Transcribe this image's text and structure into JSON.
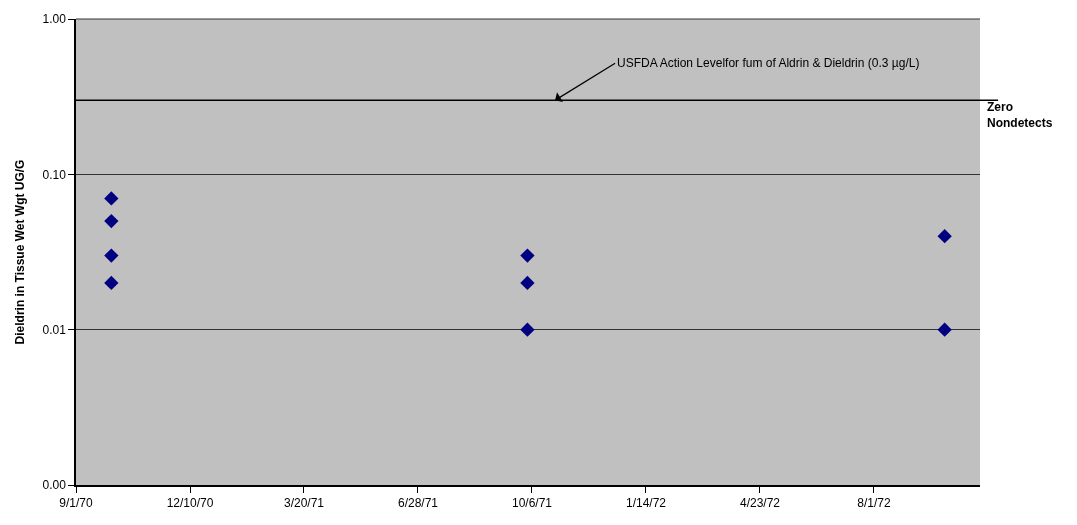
{
  "chart_data": {
    "type": "scatter",
    "ylabel": "Dieldrin in Tissue Wet Wgt UG/G",
    "x": [
      "1970-10-02",
      "1970-10-02",
      "1970-10-02",
      "1970-10-02",
      "1971-10-02",
      "1971-10-02",
      "1971-10-02",
      "1972-10-02",
      "1972-10-02"
    ],
    "series": [
      {
        "color": "#000080",
        "values": [
          0.07,
          0.05,
          0.03,
          0.02,
          0.03,
          0.02,
          0.01,
          0.04,
          0.01
        ]
      }
    ],
    "log": "y",
    "ylim": [
      0.001,
      1
    ],
    "yticks": [
      {
        "value": 0.001,
        "label": "0.00"
      },
      {
        "value": 0.01,
        "label": "0.01"
      },
      {
        "value": 0.1,
        "label": "0.10"
      },
      {
        "value": 1,
        "label": "1.00"
      }
    ],
    "xlim": [
      "1970-09-01",
      "1972-11-02"
    ],
    "xticks": [
      {
        "value": "1970-09-01",
        "label": "9/1/70"
      },
      {
        "value": "1970-12-10",
        "label": "12/10/70"
      },
      {
        "value": "1971-03-20",
        "label": "3/20/71"
      },
      {
        "value": "1971-06-28",
        "label": "6/28/71"
      },
      {
        "value": "1971-10-06",
        "label": "10/6/71"
      },
      {
        "value": "1972-01-14",
        "label": "1/14/72"
      },
      {
        "value": "1972-04-23",
        "label": "4/23/72"
      },
      {
        "value": "1972-08-01",
        "label": "8/1/72"
      }
    ],
    "ref_lines": [
      {
        "axis": "y",
        "value": 0.3,
        "label": "USFDA Action Levelfor fum of Aldrin & Dieldrin (0.3 µg/L)",
        "color": "#000000"
      }
    ],
    "annotations": [
      "Zero Nondetects"
    ],
    "grid": "y",
    "marker": "diamond"
  }
}
